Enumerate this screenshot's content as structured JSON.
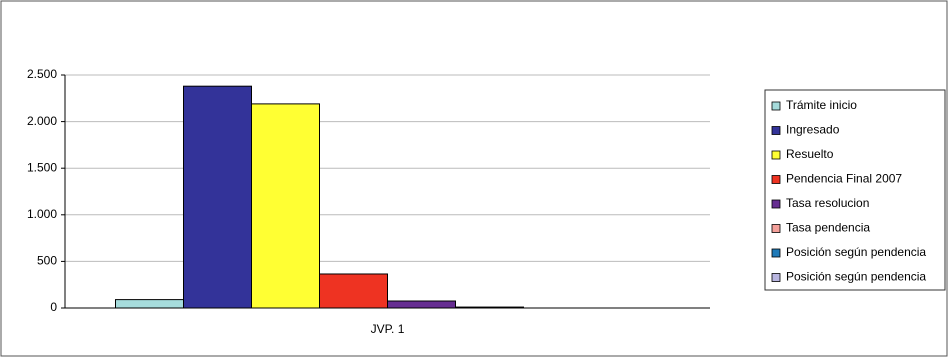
{
  "chart_data": {
    "type": "bar",
    "categories": [
      "JVP. 1"
    ],
    "series": [
      {
        "name": "Trámite inicio",
        "color": "#a6dcdc",
        "values": [
          90
        ]
      },
      {
        "name": "Ingresado",
        "color": "#333399",
        "values": [
          2380
        ]
      },
      {
        "name": "Resuelto",
        "color": "#ffff33",
        "values": [
          2190
        ]
      },
      {
        "name": "Pendencia Final 2007",
        "color": "#ee3322",
        "values": [
          365
        ]
      },
      {
        "name": "Tasa resolucion",
        "color": "#662d91",
        "values": [
          75
        ]
      },
      {
        "name": "Tasa pendencia",
        "color": "#f4a09a",
        "values": [
          10
        ]
      },
      {
        "name": "Posición según pendencia",
        "color": "#1f7ab8",
        "values": [
          0
        ]
      },
      {
        "name": "Posición según pendencia",
        "color": "#b9b6e0",
        "values": [
          0
        ]
      }
    ],
    "ylim": [
      0,
      2500
    ],
    "yticks": [
      0,
      {
        "value": 500,
        "label": "500"
      },
      {
        "value": 1000,
        "label": "1.000"
      },
      {
        "value": 1500,
        "label": "1.500"
      },
      {
        "value": 2000,
        "label": "2.000"
      },
      {
        "value": 2500,
        "label": "2.500"
      }
    ],
    "grid": true,
    "legend": "right"
  }
}
